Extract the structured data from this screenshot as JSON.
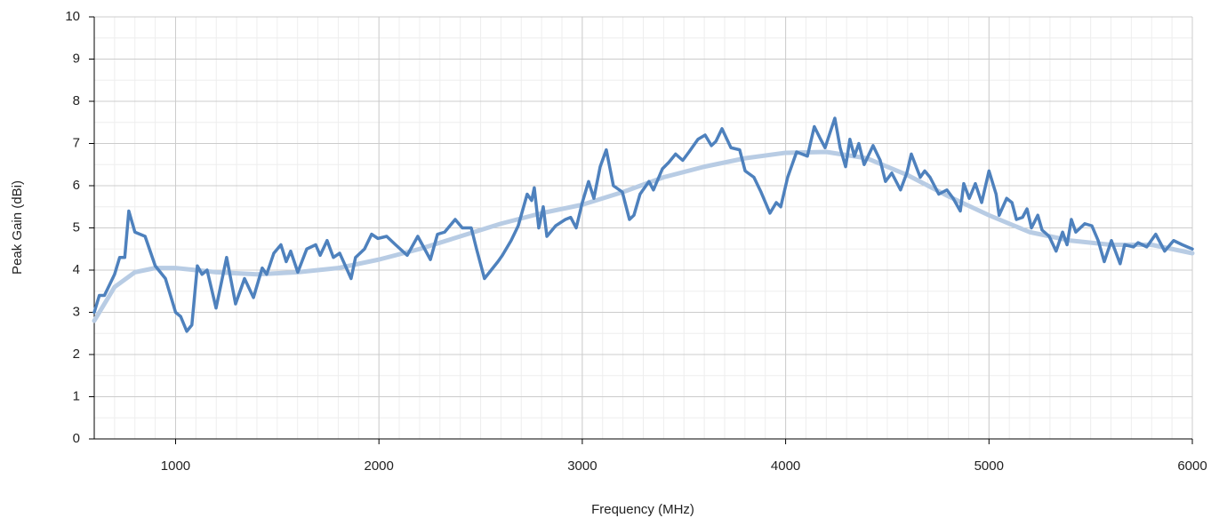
{
  "chart_data": {
    "type": "line",
    "x_label": "Frequency (MHz)",
    "y_label": "Peak Gain (dBi)",
    "xlim": [
      600,
      6000
    ],
    "xticks": [
      1000,
      2000,
      3000,
      4000,
      5000,
      6000
    ],
    "ylim": [
      0,
      10
    ],
    "yticks": [
      0,
      1,
      2,
      3,
      4,
      5,
      6,
      7,
      8,
      9,
      10
    ],
    "grid": true,
    "minor_grid": true,
    "series": [
      {
        "color": "#b8cce4",
        "x": [
          600,
          700,
          800,
          900,
          1000,
          1200,
          1400,
          1600,
          1800,
          2000,
          2200,
          2400,
          2600,
          2800,
          3000,
          3200,
          3400,
          3600,
          3800,
          4000,
          4200,
          4400,
          4600,
          4800,
          5000,
          5200,
          5400,
          5600,
          5800,
          6000
        ],
        "values": [
          2.8,
          3.6,
          3.95,
          4.05,
          4.05,
          3.95,
          3.9,
          3.95,
          4.05,
          4.25,
          4.5,
          4.8,
          5.1,
          5.35,
          5.55,
          5.85,
          6.2,
          6.45,
          6.65,
          6.78,
          6.8,
          6.65,
          6.25,
          5.75,
          5.3,
          4.9,
          4.7,
          4.6,
          4.6,
          4.4
        ]
      },
      {
        "color": "#4e81bd",
        "x": [
          600,
          625,
          650,
          700,
          725,
          750,
          770,
          800,
          850,
          900,
          950,
          1000,
          1025,
          1055,
          1080,
          1107,
          1130,
          1155,
          1199,
          1251,
          1295,
          1339,
          1383,
          1426,
          1448,
          1483,
          1518,
          1544,
          1566,
          1601,
          1645,
          1689,
          1711,
          1745,
          1776,
          1807,
          1863,
          1885,
          1929,
          1964,
          1995,
          2038,
          2082,
          2139,
          2191,
          2253,
          2288,
          2323,
          2375,
          2410,
          2454,
          2480,
          2519,
          2585,
          2607,
          2650,
          2685,
          2729,
          2751,
          2764,
          2786,
          2808,
          2826,
          2869,
          2917,
          2943,
          2970,
          3000,
          3031,
          3057,
          3088,
          3118,
          3153,
          3197,
          3232,
          3254,
          3284,
          3328,
          3350,
          3394,
          3425,
          3459,
          3494,
          3525,
          3569,
          3604,
          3635,
          3657,
          3687,
          3731,
          3774,
          3801,
          3844,
          3879,
          3923,
          3954,
          3976,
          4010,
          4054,
          4107,
          4141,
          4172,
          4194,
          4242,
          4268,
          4295,
          4316,
          4338,
          4360,
          4386,
          4430,
          4465,
          4491,
          4522,
          4565,
          4596,
          4618,
          4662,
          4684,
          4710,
          4753,
          4793,
          4824,
          4859,
          4876,
          4903,
          4933,
          4964,
          5000,
          5035,
          5050,
          5087,
          5113,
          5135,
          5165,
          5187,
          5209,
          5240,
          5261,
          5296,
          5330,
          5362,
          5384,
          5405,
          5427,
          5471,
          5506,
          5537,
          5567,
          5602,
          5645,
          5667,
          5711,
          5733,
          5776,
          5820,
          5864,
          5908,
          5951,
          6000
        ],
        "values": [
          3.0,
          3.4,
          3.4,
          3.9,
          4.3,
          4.3,
          5.4,
          4.9,
          4.8,
          4.1,
          3.8,
          3.0,
          2.9,
          2.55,
          2.7,
          4.1,
          3.9,
          4.0,
          3.1,
          4.3,
          3.2,
          3.8,
          3.35,
          4.05,
          3.9,
          4.4,
          4.6,
          4.2,
          4.45,
          3.95,
          4.5,
          4.6,
          4.35,
          4.7,
          4.3,
          4.4,
          3.8,
          4.3,
          4.5,
          4.85,
          4.75,
          4.8,
          4.6,
          4.35,
          4.8,
          4.25,
          4.85,
          4.9,
          5.2,
          5.0,
          5.0,
          4.5,
          3.8,
          4.2,
          4.35,
          4.7,
          5.05,
          5.8,
          5.65,
          5.95,
          5.0,
          5.5,
          4.8,
          5.05,
          5.2,
          5.25,
          5.0,
          5.6,
          6.1,
          5.7,
          6.45,
          6.85,
          6.0,
          5.85,
          5.2,
          5.3,
          5.8,
          6.1,
          5.9,
          6.4,
          6.55,
          6.75,
          6.6,
          6.8,
          7.1,
          7.2,
          6.95,
          7.05,
          7.35,
          6.9,
          6.85,
          6.35,
          6.2,
          5.85,
          5.35,
          5.6,
          5.5,
          6.2,
          6.8,
          6.7,
          7.4,
          7.1,
          6.9,
          7.6,
          6.9,
          6.45,
          7.1,
          6.7,
          7.0,
          6.5,
          6.95,
          6.6,
          6.1,
          6.3,
          5.9,
          6.3,
          6.75,
          6.2,
          6.35,
          6.2,
          5.8,
          5.9,
          5.7,
          5.4,
          6.05,
          5.7,
          6.05,
          5.6,
          6.35,
          5.8,
          5.3,
          5.7,
          5.6,
          5.2,
          5.25,
          5.45,
          5.0,
          5.3,
          4.95,
          4.8,
          4.45,
          4.9,
          4.6,
          5.2,
          4.9,
          5.1,
          5.05,
          4.7,
          4.2,
          4.7,
          4.15,
          4.6,
          4.55,
          4.65,
          4.55,
          4.85,
          4.45,
          4.7,
          4.6,
          4.5
        ]
      }
    ]
  }
}
